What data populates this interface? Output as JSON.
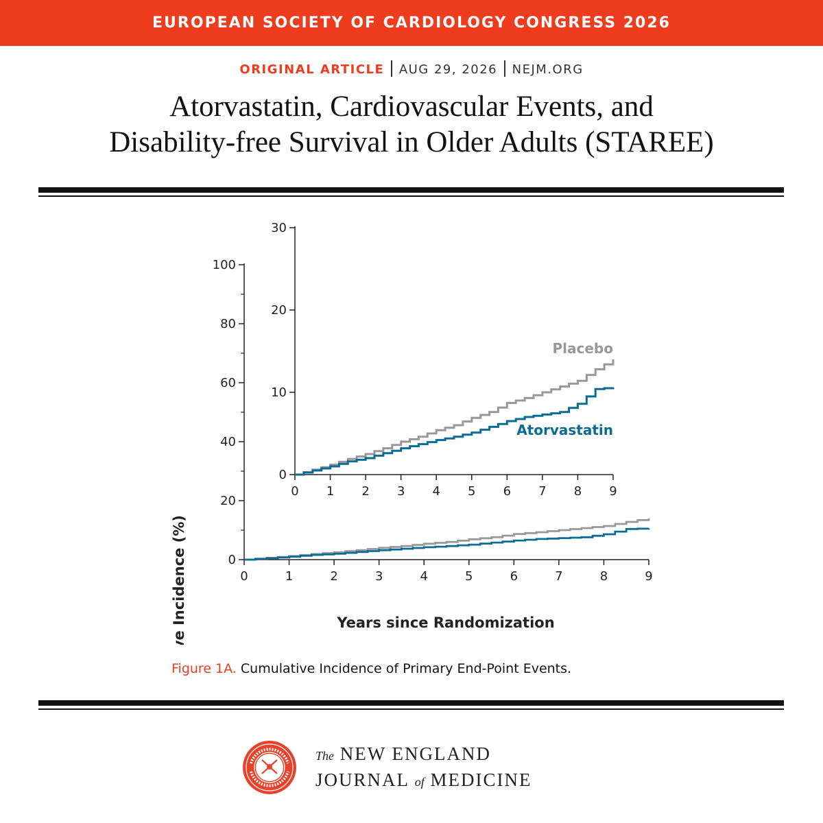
{
  "header": {
    "banner": "EUROPEAN SOCIETY OF CARDIOLOGY CONGRESS 2026",
    "category": "ORIGINAL ARTICLE",
    "date": "AUG 29, 2026",
    "site": "NEJM.ORG"
  },
  "article": {
    "title_line1": "Atorvastatin, Cardiovascular Events, and",
    "title_line2": "Disability-free Survival in Older Adults (STAREE)"
  },
  "caption": {
    "figure_label": "Figure 1A.",
    "text": "Cumulative Incidence of Primary End-Point Events."
  },
  "footer": {
    "journal_line1_prefix": "The",
    "journal_line1": "NEW ENGLAND",
    "journal_line2a": "JOURNAL",
    "journal_line2_of": "of",
    "journal_line2b": "MEDICINE",
    "seal_text": [
      "NEW ENGLAND",
      "JOURNAL OF MEDICINE",
      "1812",
      "1823",
      "1828",
      "1928"
    ]
  },
  "colors": {
    "accent": "#ee3d1e",
    "placebo": "#98989b",
    "atorvastatin": "#0a6c93",
    "axis": "#222222"
  },
  "chart_data": [
    {
      "type": "line",
      "panel": "main",
      "xlabel": "Years since Randomization",
      "ylabel": "Cumulative Incidence (%)",
      "xlim": [
        0,
        9
      ],
      "ylim": [
        0,
        100
      ],
      "x_ticks": [
        0,
        1,
        2,
        3,
        4,
        5,
        6,
        7,
        8,
        9
      ],
      "y_ticks": [
        0,
        20,
        40,
        60,
        80,
        100
      ],
      "series": [
        {
          "name": "Placebo",
          "color": "#98989b",
          "x": [
            0,
            0.5,
            1,
            1.5,
            2,
            2.5,
            3,
            3.5,
            4,
            4.5,
            5,
            5.5,
            6,
            6.5,
            7,
            7.5,
            8,
            8.5,
            9
          ],
          "y": [
            0,
            0.6,
            1.2,
            1.9,
            2.5,
            3.2,
            4.0,
            4.6,
            5.4,
            6.0,
            6.9,
            7.6,
            8.7,
            9.3,
            10.0,
            10.7,
            11.4,
            12.8,
            14.0
          ]
        },
        {
          "name": "Atorvastatin",
          "color": "#0a6c93",
          "x": [
            0,
            0.5,
            1,
            1.5,
            2,
            2.5,
            3,
            3.5,
            4,
            4.5,
            5,
            5.5,
            6,
            6.5,
            7,
            7.5,
            8,
            8.5,
            9
          ],
          "y": [
            0,
            0.5,
            1.0,
            1.6,
            2.0,
            2.6,
            3.2,
            3.7,
            4.2,
            4.6,
            5.1,
            5.8,
            6.5,
            7.0,
            7.3,
            7.6,
            8.6,
            10.4,
            10.6
          ]
        }
      ]
    },
    {
      "type": "line",
      "panel": "inset",
      "xlim": [
        0,
        9
      ],
      "ylim": [
        0,
        30
      ],
      "x_ticks": [
        0,
        1,
        2,
        3,
        4,
        5,
        6,
        7,
        8,
        9
      ],
      "y_ticks": [
        0,
        10,
        20,
        30
      ],
      "series": [
        {
          "name": "Placebo",
          "color": "#98989b",
          "x": [
            0,
            0.5,
            1,
            1.5,
            2,
            2.5,
            3,
            3.5,
            4,
            4.5,
            5,
            5.5,
            6,
            6.5,
            7,
            7.5,
            8,
            8.5,
            9
          ],
          "y": [
            0,
            0.6,
            1.2,
            1.9,
            2.5,
            3.2,
            4.0,
            4.6,
            5.4,
            6.0,
            6.9,
            7.6,
            8.7,
            9.3,
            10.0,
            10.7,
            11.4,
            12.8,
            14.0
          ]
        },
        {
          "name": "Atorvastatin",
          "color": "#0a6c93",
          "x": [
            0,
            0.5,
            1,
            1.5,
            2,
            2.5,
            3,
            3.5,
            4,
            4.5,
            5,
            5.5,
            6,
            6.5,
            7,
            7.5,
            8,
            8.5,
            9
          ],
          "y": [
            0,
            0.5,
            1.0,
            1.6,
            2.0,
            2.6,
            3.2,
            3.7,
            4.2,
            4.6,
            5.1,
            5.8,
            6.5,
            7.0,
            7.3,
            7.6,
            8.6,
            10.4,
            10.6
          ]
        }
      ]
    }
  ]
}
